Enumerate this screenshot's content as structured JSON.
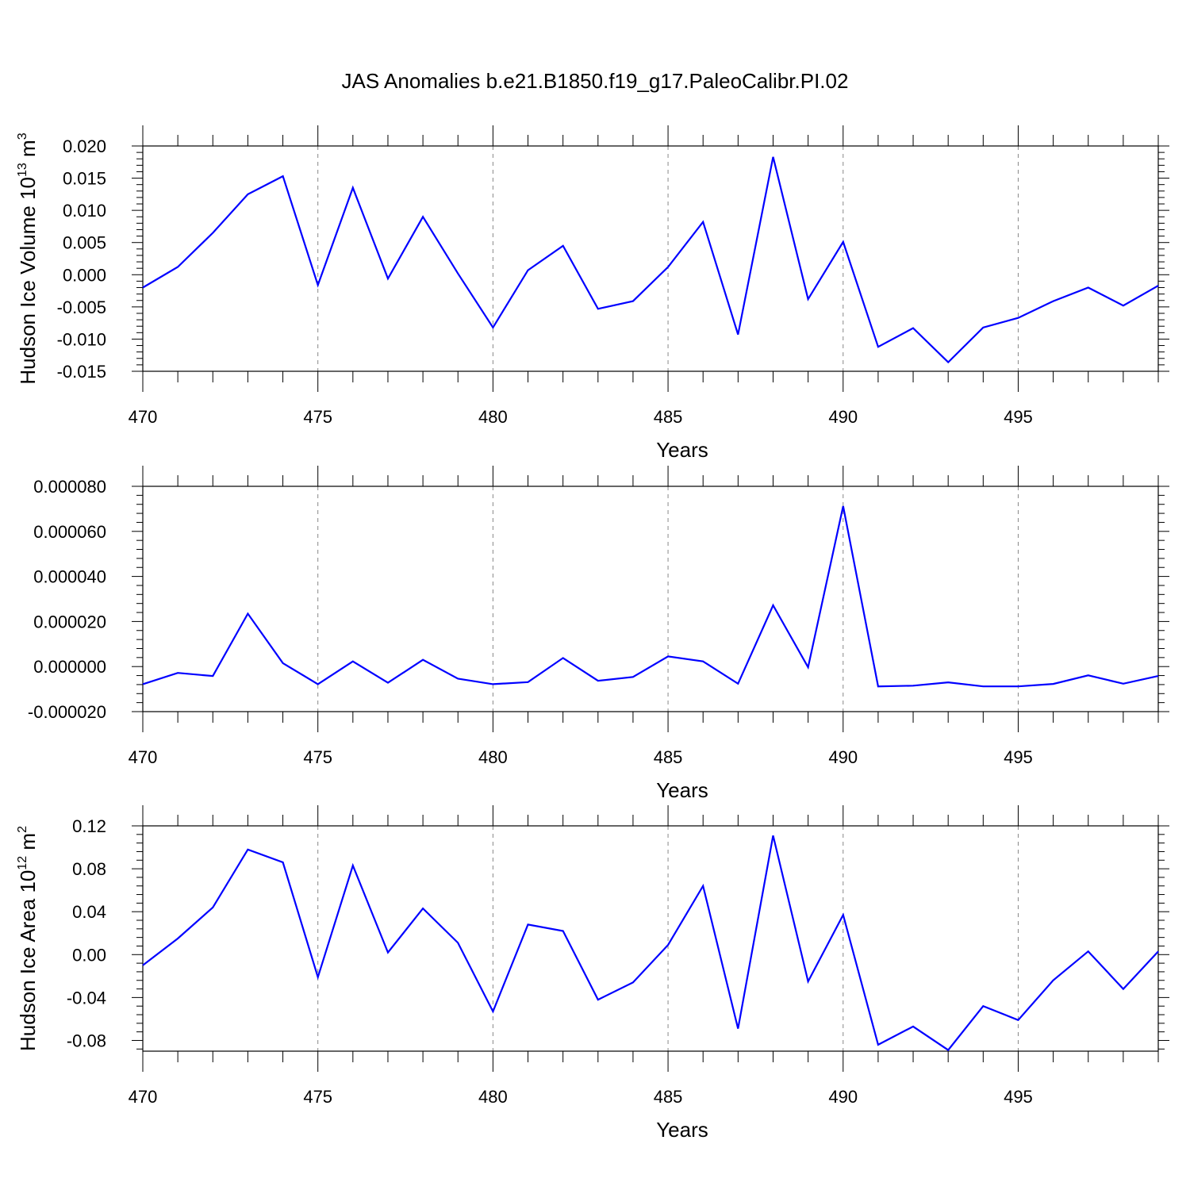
{
  "figure_title": "JAS Anomalies b.e21.B1850.f19_g17.PaleoCalibr.PI.02",
  "line_color": "#0000ff",
  "chart_data": [
    {
      "type": "line",
      "xlabel": "Years",
      "ylabel": "Hudson Ice Volume 10",
      "ylabel_sup": "13",
      "ylabel_unit": " m",
      "ylabel_unit_sup": "3",
      "xlim": [
        470,
        499
      ],
      "ylim": [
        -0.015,
        0.02
      ],
      "grid_x": true,
      "x_ticks": [
        "470",
        "475",
        "480",
        "485",
        "490",
        "495"
      ],
      "y_ticks": [
        "-0.015",
        "-0.010",
        "-0.005",
        "0.000",
        "0.005",
        "0.010",
        "0.015",
        "0.020"
      ],
      "y_tick_values": [
        -0.015,
        -0.01,
        -0.005,
        0.0,
        0.005,
        0.01,
        0.015,
        0.02
      ],
      "x": [
        470,
        471,
        472,
        473,
        474,
        475,
        476,
        477,
        478,
        479,
        480,
        481,
        482,
        483,
        484,
        485,
        486,
        487,
        488,
        489,
        490,
        491,
        492,
        493,
        494,
        495,
        496,
        497,
        498,
        499
      ],
      "values": [
        -0.002,
        0.0012,
        0.0065,
        0.0125,
        0.0153,
        -0.0016,
        0.0135,
        -0.0006,
        0.009,
        0.0002,
        -0.0082,
        0.0007,
        0.0045,
        -0.0053,
        -0.0041,
        0.0012,
        0.0082,
        -0.0093,
        0.0183,
        -0.0038,
        0.0051,
        -0.0112,
        -0.0083,
        -0.0136,
        -0.0082,
        -0.0067,
        -0.0041,
        -0.002,
        -0.0048,
        -0.0017
      ]
    },
    {
      "type": "line",
      "xlabel": "Years",
      "ylabel": "",
      "xlim": [
        470,
        499
      ],
      "ylim": [
        -2e-05,
        8e-05
      ],
      "grid_x": true,
      "x_ticks": [
        "470",
        "475",
        "480",
        "485",
        "490",
        "495"
      ],
      "y_ticks": [
        "-0.000020",
        "0.000000",
        "0.000020",
        "0.000040",
        "0.000060",
        "0.000080"
      ],
      "y_tick_values": [
        -2e-05,
        0.0,
        2e-05,
        4e-05,
        6e-05,
        8e-05
      ],
      "x": [
        470,
        471,
        472,
        473,
        474,
        475,
        476,
        477,
        478,
        479,
        480,
        481,
        482,
        483,
        484,
        485,
        486,
        487,
        488,
        489,
        490,
        491,
        492,
        493,
        494,
        495,
        496,
        497,
        498,
        499
      ],
      "values": [
        -7.8e-06,
        -2.8e-06,
        -4.2e-06,
        2.35e-05,
        1.5e-06,
        -7.8e-06,
        2.3e-06,
        -7.2e-06,
        3e-06,
        -5.4e-06,
        -7.8e-06,
        -6.9e-06,
        3.8e-06,
        -6.3e-06,
        -4.6e-06,
        4.5e-06,
        2.3e-06,
        -7.6e-06,
        2.72e-05,
        -3e-07,
        7.12e-05,
        -8.8e-06,
        -8.5e-06,
        -7e-06,
        -8.8e-06,
        -8.8e-06,
        -7.7e-06,
        -3.9e-06,
        -7.6e-06,
        -4.2e-06
      ]
    },
    {
      "type": "line",
      "xlabel": "Years",
      "ylabel": "Hudson Ice Area 10",
      "ylabel_sup": "12",
      "ylabel_unit": " m",
      "ylabel_unit_sup": "2",
      "xlim": [
        470,
        499
      ],
      "ylim": [
        -0.09,
        0.12
      ],
      "grid_x": true,
      "x_ticks": [
        "470",
        "475",
        "480",
        "485",
        "490",
        "495"
      ],
      "y_ticks": [
        "-0.08",
        "-0.04",
        "0.00",
        "0.04",
        "0.08",
        "0.12"
      ],
      "y_tick_values": [
        -0.08,
        -0.04,
        0.0,
        0.04,
        0.08,
        0.12
      ],
      "x": [
        470,
        471,
        472,
        473,
        474,
        475,
        476,
        477,
        478,
        479,
        480,
        481,
        482,
        483,
        484,
        485,
        486,
        487,
        488,
        489,
        490,
        491,
        492,
        493,
        494,
        495,
        496,
        497,
        498,
        499
      ],
      "values": [
        -0.01,
        0.015,
        0.044,
        0.098,
        0.086,
        -0.021,
        0.083,
        0.002,
        0.043,
        0.011,
        -0.053,
        0.028,
        0.022,
        -0.042,
        -0.026,
        0.009,
        0.064,
        -0.069,
        0.111,
        -0.025,
        0.037,
        -0.084,
        -0.067,
        -0.089,
        -0.048,
        -0.061,
        -0.024,
        0.003,
        -0.032,
        0.003
      ]
    }
  ]
}
